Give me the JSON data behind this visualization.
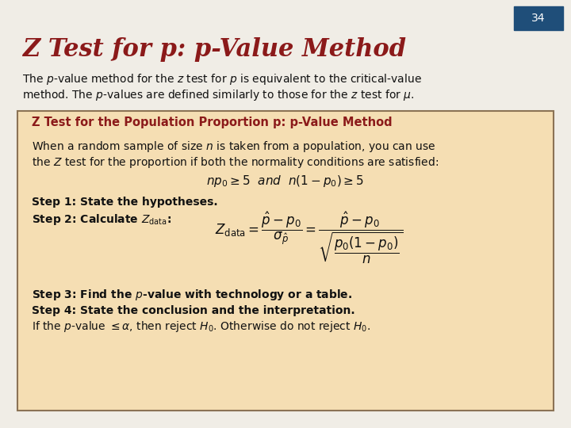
{
  "bg_color": "#f0ede6",
  "title": "Z Test for p: p-Value Method",
  "title_color": "#8B1A1A",
  "slide_number": "34",
  "slide_num_bg": "#1F4E79",
  "slide_num_color": "#ffffff",
  "box_bg": "#f5deb3",
  "box_border": "#8B7355",
  "box_title": "Z Test for the Population Proportion p: p-Value Method",
  "box_title_color": "#8B1A1A",
  "body_text_color": "#111111",
  "step_bold_color": "#111111",
  "intro_line1": "The p-value method for the z test for p is equivalent to the critical-value",
  "intro_line2": "method. The p-values are defined similarly to those for the z test for μ."
}
